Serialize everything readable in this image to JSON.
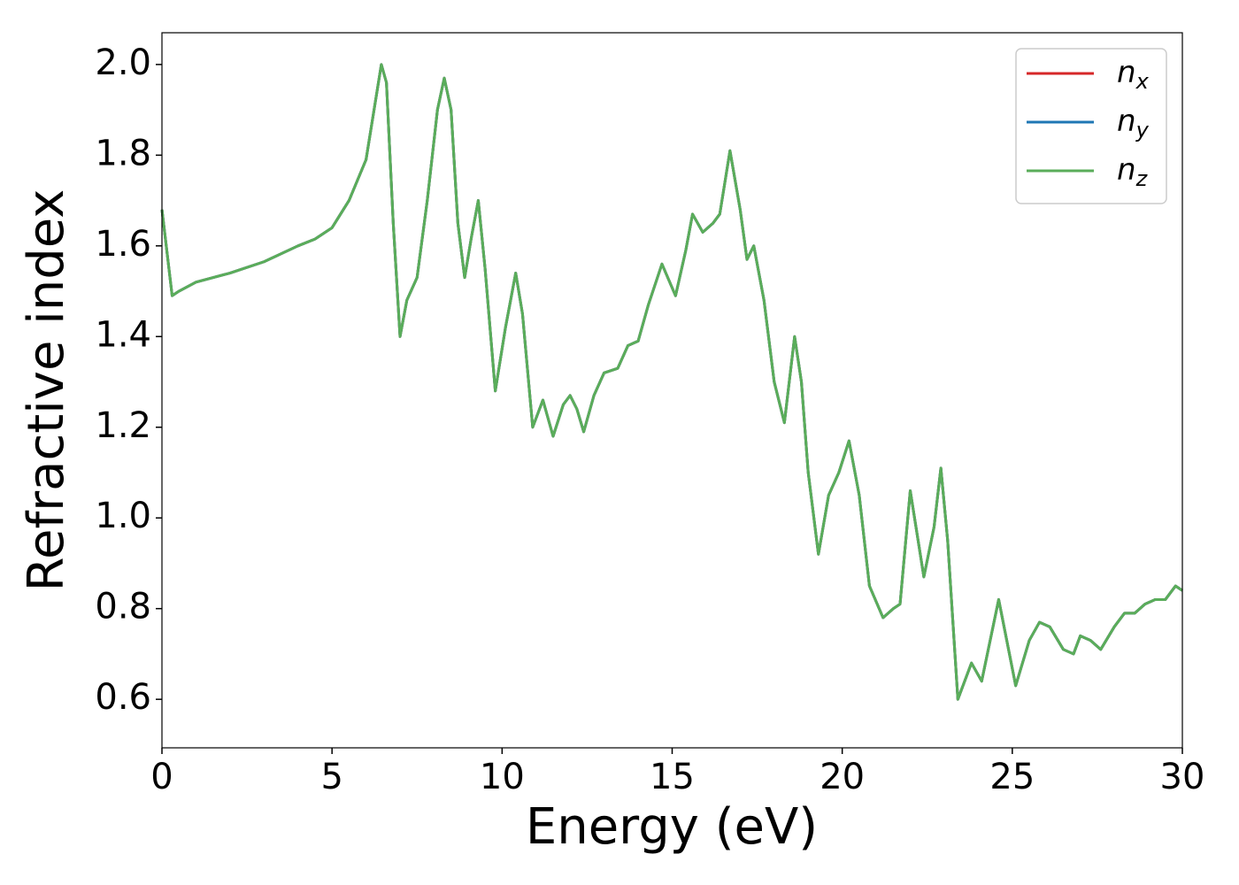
{
  "chart_data": {
    "type": "line",
    "xlabel": "Energy (eV)",
    "ylabel": "Refractive index",
    "x": [
      0,
      0.3,
      0.5,
      1,
      2,
      3,
      4,
      4.5,
      5,
      5.5,
      6,
      6.3,
      6.45,
      6.6,
      6.8,
      7.0,
      7.2,
      7.5,
      7.8,
      8.1,
      8.3,
      8.5,
      8.7,
      8.9,
      9.1,
      9.3,
      9.5,
      9.8,
      10.1,
      10.4,
      10.6,
      10.9,
      11.2,
      11.5,
      11.8,
      12.0,
      12.2,
      12.4,
      12.7,
      13.0,
      13.4,
      13.7,
      14.0,
      14.3,
      14.7,
      15.1,
      15.4,
      15.6,
      15.9,
      16.2,
      16.4,
      16.7,
      17.0,
      17.2,
      17.4,
      17.7,
      18.0,
      18.3,
      18.6,
      18.8,
      19.0,
      19.3,
      19.6,
      19.9,
      20.2,
      20.5,
      20.8,
      21.2,
      21.5,
      21.7,
      22.0,
      22.4,
      22.7,
      22.9,
      23.1,
      23.4,
      23.8,
      24.1,
      24.6,
      25.1,
      25.5,
      25.8,
      26.1,
      26.5,
      26.8,
      27.0,
      27.3,
      27.6,
      28.0,
      28.3,
      28.6,
      28.9,
      29.2,
      29.5,
      29.8,
      30.0
    ],
    "series": [
      {
        "name": "nx",
        "color": "#d62728",
        "values": [
          1.68,
          1.49,
          1.5,
          1.52,
          1.54,
          1.565,
          1.6,
          1.615,
          1.64,
          1.7,
          1.79,
          1.93,
          2.0,
          1.96,
          1.65,
          1.4,
          1.48,
          1.53,
          1.7,
          1.9,
          1.97,
          1.9,
          1.65,
          1.53,
          1.62,
          1.7,
          1.55,
          1.28,
          1.42,
          1.54,
          1.45,
          1.2,
          1.26,
          1.18,
          1.25,
          1.27,
          1.24,
          1.19,
          1.27,
          1.32,
          1.33,
          1.38,
          1.39,
          1.47,
          1.56,
          1.49,
          1.59,
          1.67,
          1.63,
          1.65,
          1.67,
          1.81,
          1.68,
          1.57,
          1.6,
          1.48,
          1.3,
          1.21,
          1.4,
          1.3,
          1.1,
          0.92,
          1.05,
          1.1,
          1.17,
          1.05,
          0.85,
          0.78,
          0.8,
          0.81,
          1.06,
          0.87,
          0.98,
          1.11,
          0.95,
          0.6,
          0.68,
          0.64,
          0.82,
          0.63,
          0.73,
          0.77,
          0.76,
          0.71,
          0.7,
          0.74,
          0.73,
          0.71,
          0.76,
          0.79,
          0.79,
          0.81,
          0.82,
          0.82,
          0.85,
          0.84
        ]
      },
      {
        "name": "ny",
        "color": "#1f77b4",
        "values": [
          1.68,
          1.49,
          1.5,
          1.52,
          1.54,
          1.565,
          1.6,
          1.615,
          1.64,
          1.7,
          1.79,
          1.93,
          2.0,
          1.96,
          1.65,
          1.4,
          1.48,
          1.53,
          1.7,
          1.9,
          1.97,
          1.9,
          1.65,
          1.53,
          1.62,
          1.7,
          1.55,
          1.28,
          1.42,
          1.54,
          1.45,
          1.2,
          1.26,
          1.18,
          1.25,
          1.27,
          1.24,
          1.19,
          1.27,
          1.32,
          1.33,
          1.38,
          1.39,
          1.47,
          1.56,
          1.49,
          1.59,
          1.67,
          1.63,
          1.65,
          1.67,
          1.81,
          1.68,
          1.57,
          1.6,
          1.48,
          1.3,
          1.21,
          1.4,
          1.3,
          1.1,
          0.92,
          1.05,
          1.1,
          1.17,
          1.05,
          0.85,
          0.78,
          0.8,
          0.81,
          1.06,
          0.87,
          0.98,
          1.11,
          0.95,
          0.6,
          0.68,
          0.64,
          0.82,
          0.63,
          0.73,
          0.77,
          0.76,
          0.71,
          0.7,
          0.74,
          0.73,
          0.71,
          0.76,
          0.79,
          0.79,
          0.81,
          0.82,
          0.82,
          0.85,
          0.84
        ]
      },
      {
        "name": "nz",
        "color": "#5aad5a",
        "values": [
          1.68,
          1.49,
          1.5,
          1.52,
          1.54,
          1.565,
          1.6,
          1.615,
          1.64,
          1.7,
          1.79,
          1.93,
          2.0,
          1.96,
          1.65,
          1.4,
          1.48,
          1.53,
          1.7,
          1.9,
          1.97,
          1.9,
          1.65,
          1.53,
          1.62,
          1.7,
          1.55,
          1.28,
          1.42,
          1.54,
          1.45,
          1.2,
          1.26,
          1.18,
          1.25,
          1.27,
          1.24,
          1.19,
          1.27,
          1.32,
          1.33,
          1.38,
          1.39,
          1.47,
          1.56,
          1.49,
          1.59,
          1.67,
          1.63,
          1.65,
          1.67,
          1.81,
          1.68,
          1.57,
          1.6,
          1.48,
          1.3,
          1.21,
          1.4,
          1.3,
          1.1,
          0.92,
          1.05,
          1.1,
          1.17,
          1.05,
          0.85,
          0.78,
          0.8,
          0.81,
          1.06,
          0.87,
          0.98,
          1.11,
          0.95,
          0.6,
          0.68,
          0.64,
          0.82,
          0.63,
          0.73,
          0.77,
          0.76,
          0.71,
          0.7,
          0.74,
          0.73,
          0.71,
          0.76,
          0.79,
          0.79,
          0.81,
          0.82,
          0.82,
          0.85,
          0.84
        ]
      }
    ],
    "xlim": [
      0,
      30
    ],
    "xticks": [
      0,
      5,
      10,
      15,
      20,
      25,
      30
    ],
    "ylim": [
      0.493,
      2.07
    ],
    "yticks": [
      {
        "value": 0.6,
        "label": "0.6"
      },
      {
        "value": 0.8,
        "label": "0.8"
      },
      {
        "value": 1.0,
        "label": "1.0"
      },
      {
        "value": 1.2,
        "label": "1.2"
      },
      {
        "value": 1.4,
        "label": "1.4"
      },
      {
        "value": 1.6,
        "label": "1.6"
      },
      {
        "value": 1.8,
        "label": "1.8"
      },
      {
        "value": 2.0,
        "label": "2.0"
      }
    ],
    "legend": "upper right",
    "grid": false
  }
}
